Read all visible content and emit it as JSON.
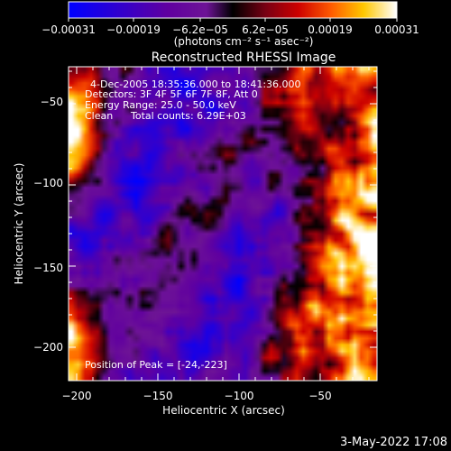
{
  "chart_data": {
    "type": "heatmap",
    "title": "Reconstructed RHESSI Image",
    "xlabel": "Heliocentric X (arcsec)",
    "ylabel": "Heliocentric Y (arcsec)",
    "xlim": [
      -205,
      -15
    ],
    "ylim": [
      -222,
      -33
    ],
    "xticks": [
      -200,
      -150,
      -100,
      -50
    ],
    "xtick_labels": [
      "−200",
      "−150",
      "−100",
      "−50"
    ],
    "yticks": [
      -200,
      -150,
      -100,
      -50
    ],
    "ytick_labels": [
      "−200",
      "−150",
      "−100",
      "−50"
    ],
    "colorbar": {
      "range": [
        -0.00031,
        0.00031
      ],
      "ticks": [
        -0.00031,
        -0.00019,
        -6.2e-05,
        6.2e-05,
        0.00019,
        0.00031
      ],
      "tick_labels": [
        "−0.00031",
        "−0.00019",
        "−6.2e−05",
        "6.2e−05",
        "0.00019",
        "0.00031"
      ],
      "unit_label": "(photons cm⁻² s⁻¹ asec⁻²)"
    },
    "annotations": {
      "time_range": "4-Dec-2005 18:35:36.000 to 18:41:36.000",
      "detectors": "Detectors: 3F 4F 5F 6F 7F 8F, Att 0",
      "energy": "Energy Range: 25.0 - 50.0 keV",
      "clean_label": "Clean",
      "total_counts": "Total counts: 6.29E+03",
      "peak": "Position of Peak = [-24,-223]"
    },
    "peak_position": [
      -24,
      -223
    ]
  },
  "footer": {
    "timestamp": "3-May-2022 17:08"
  },
  "colors": {
    "background": "#000000",
    "foreground": "#ffffff"
  }
}
